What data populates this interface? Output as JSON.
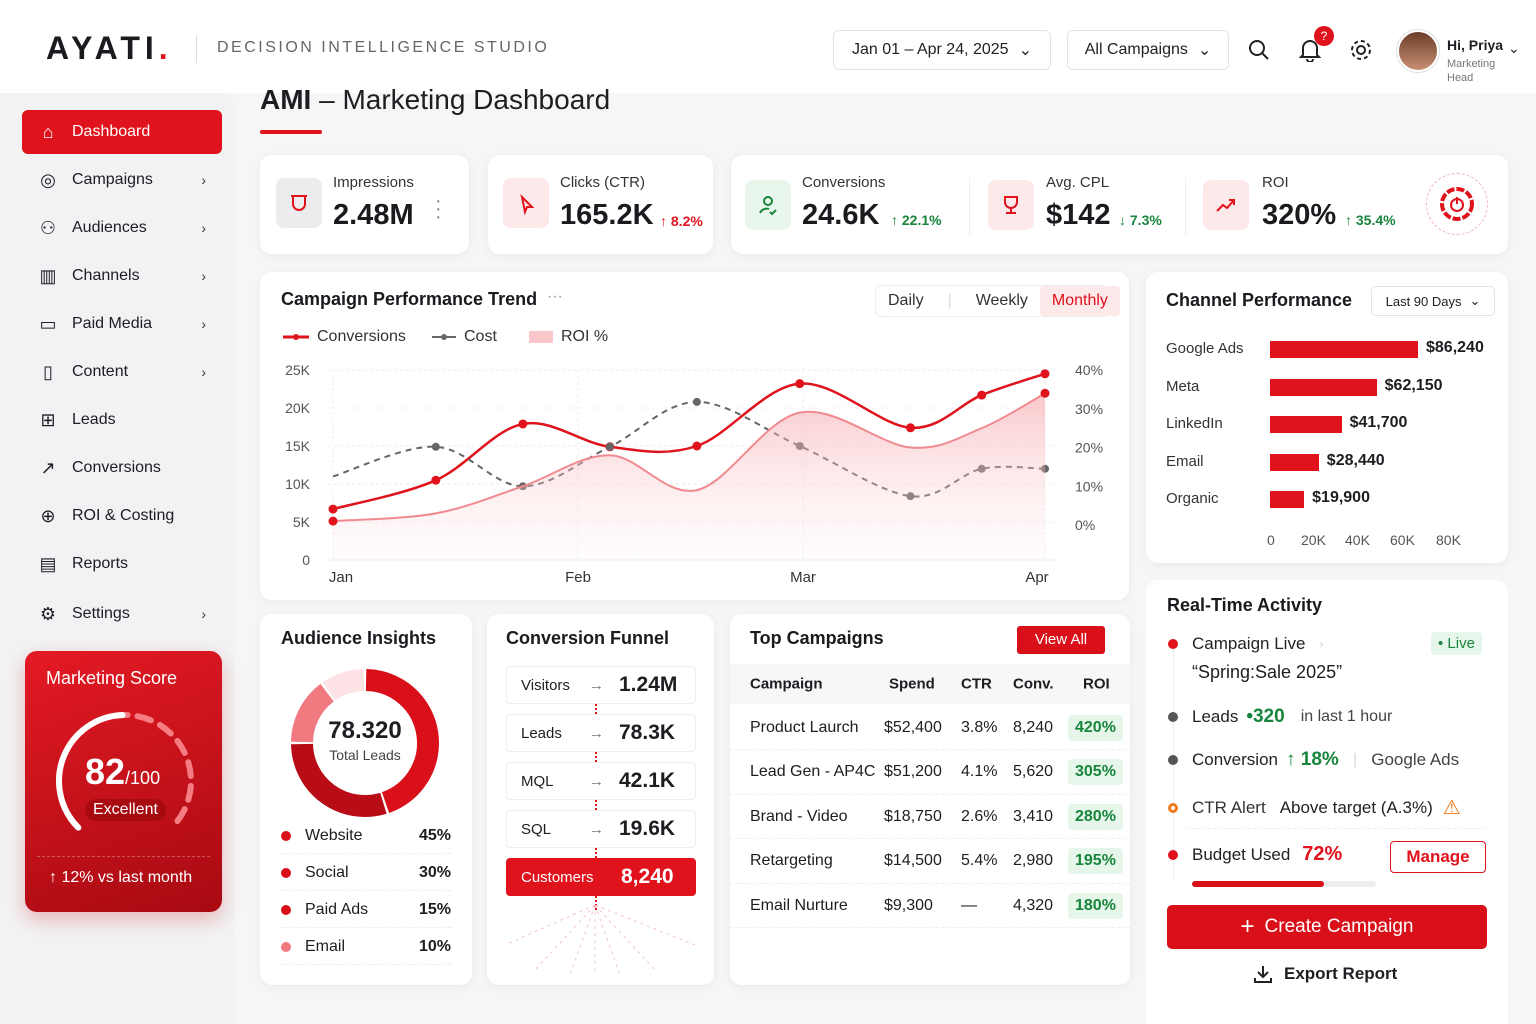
{
  "brand": {
    "logo": "AYATI",
    "tagline": "DECISION INTELLIGENCE STUDIO"
  },
  "header": {
    "date_range": "Jan 01 – Apr 24, 2025",
    "campaign_filter": "All Campaigns",
    "notification_count": "?",
    "user_greeting": "Hi, Priya",
    "user_role": "Marketing Head"
  },
  "page": {
    "title_bold": "AMI",
    "title_rest": "– Marketing Dashboard"
  },
  "sidebar": {
    "items": [
      {
        "label": "Dashboard",
        "icon": "home-icon",
        "active": true
      },
      {
        "label": "Campaigns",
        "icon": "globe-icon"
      },
      {
        "label": "Audiences",
        "icon": "users-icon"
      },
      {
        "label": "Channels",
        "icon": "bar-chart-icon"
      },
      {
        "label": "Paid Media",
        "icon": "card-icon"
      },
      {
        "label": "Content",
        "icon": "document-icon"
      },
      {
        "label": "Leads",
        "icon": "leads-icon"
      },
      {
        "label": "Conversions",
        "icon": "growth-icon"
      },
      {
        "label": "ROI & Costing",
        "icon": "plus-circle-icon"
      },
      {
        "label": "Reports",
        "icon": "report-icon"
      },
      {
        "label": "Settings",
        "icon": "gear-icon"
      }
    ]
  },
  "score": {
    "title": "Marketing Score",
    "value": "82",
    "max": "/100",
    "rating": "Excellent",
    "delta": "↑ 12% vs last month",
    "fraction": 0.82
  },
  "kpis": [
    {
      "label": "Impressions",
      "value": "2.48M",
      "delta": ""
    },
    {
      "label": "Clicks (CTR)",
      "value": "165.2K",
      "delta": "↑ 8.2%"
    },
    {
      "label": "Conversions",
      "value": "24.6K",
      "delta": "↑ 22.1%"
    },
    {
      "label": "Avg. CPL",
      "value": "$142",
      "delta": "↓ 7.3%"
    },
    {
      "label": "ROI",
      "value": "320%",
      "delta": "↑ 35.4%"
    }
  ],
  "trend": {
    "title": "Campaign Performance Trend",
    "periods": [
      "Daily",
      "Weekly",
      "Monthly"
    ],
    "active_period": "Monthly",
    "legend": [
      "Conversions",
      "Cost",
      "ROI %"
    ]
  },
  "chart_data": {
    "type": "line",
    "title": "Campaign Performance Trend",
    "x": [
      "2025-01-01",
      "2025-01-14",
      "2025-01-25",
      "2025-02-05",
      "2025-02-16",
      "2025-03-01",
      "2025-03-15",
      "2025-03-24",
      "2025-04-01"
    ],
    "x_ticks": [
      "Jan",
      "Feb",
      "Mar",
      "Apr"
    ],
    "y_ticks": [
      "0",
      "5K",
      "10K",
      "15K",
      "20K",
      "25K"
    ],
    "y2_ticks": [
      "0%",
      "10%",
      "20%",
      "30%",
      "40%"
    ],
    "ylim": [
      0,
      25000
    ],
    "y2lim": [
      0,
      40
    ],
    "series": [
      {
        "name": "Conversions",
        "axis": "left",
        "color": "#e0121c",
        "values": [
          6700,
          10500,
          17900,
          14900,
          15000,
          23200,
          17400,
          21700,
          24500
        ]
      },
      {
        "name": "Cost",
        "axis": "left",
        "color": "#666666",
        "dashed": true,
        "values": [
          11000,
          14900,
          9700,
          14900,
          20800,
          15000,
          8400,
          12000,
          12000
        ]
      },
      {
        "name": "ROI %",
        "axis": "right",
        "color": "#f08a90",
        "area": true,
        "values": [
          1,
          3,
          10,
          18,
          9,
          29,
          20,
          25,
          34
        ]
      }
    ],
    "grid": true,
    "legend": "top-left"
  },
  "channels": {
    "title": "Channel Performance",
    "range": "Last 90 Days",
    "items": [
      {
        "name": "Google Ads",
        "value": 86240,
        "label": "$86,240"
      },
      {
        "name": "Meta",
        "value": 62150,
        "label": "$62,150"
      },
      {
        "name": "LinkedIn",
        "value": 41700,
        "label": "$41,700"
      },
      {
        "name": "Email",
        "value": 28440,
        "label": "$28,440"
      },
      {
        "name": "Organic",
        "value": 19900,
        "label": "$19,900"
      }
    ],
    "ticks": [
      "0",
      "20K",
      "40K",
      "60K",
      "80K"
    ]
  },
  "audience": {
    "title": "Audience Insights",
    "total": "78.320",
    "total_label": "Total Leads",
    "segments": [
      {
        "name": "Website",
        "pct": 45,
        "label": "45%",
        "color": "#d9101a"
      },
      {
        "name": "Social",
        "pct": 30,
        "label": "30%",
        "color": "#b80d16"
      },
      {
        "name": "Paid Ads",
        "pct": 15,
        "label": "15%",
        "color": "#f07a80"
      },
      {
        "name": "Email",
        "pct": 10,
        "label": "10%",
        "color": "#fde3e5"
      }
    ]
  },
  "funnel": {
    "title": "Conversion Funnel",
    "stages": [
      {
        "name": "Visitors",
        "value": "1.24M"
      },
      {
        "name": "Leads",
        "value": "78.3K"
      },
      {
        "name": "MQL",
        "value": "42.1K"
      },
      {
        "name": "SQL",
        "value": "19.6K"
      },
      {
        "name": "Customers",
        "value": "8,240"
      }
    ]
  },
  "campaigns": {
    "title": "Top Campaigns",
    "view_all": "View All",
    "headers": [
      "Campaign",
      "Spend",
      "CTR",
      "Conv.",
      "ROI"
    ],
    "rows": [
      [
        "Product Laurch",
        "$52,400",
        "3.8%",
        "8,240",
        "420%"
      ],
      [
        "Lead Gen - AP4C",
        "$51,200",
        "4.1%",
        "5,620",
        "305%"
      ],
      [
        "Brand - Video",
        "$18,750",
        "2.6%",
        "3,410",
        "280%"
      ],
      [
        "Retargeting",
        "$14,500",
        "5.4%",
        "2,980",
        "195%"
      ],
      [
        "Email Nurture",
        "$9,300",
        "—",
        "4,320",
        "180%"
      ]
    ]
  },
  "activity": {
    "title": "Real-Time Activity",
    "live_title": "Campaign Live",
    "live_badge": "• Live",
    "live_name": "“Spring:Sale 2025”",
    "leads_label": "Leads",
    "leads_value": "•320",
    "leads_suffix": "in last 1 hour",
    "conv_label": "Conversion",
    "conv_value": "↑ 18%",
    "conv_channel": "Google Ads",
    "ctr_label": "CTR Alert",
    "ctr_text": "Above target (A.3%)",
    "budget_label": "Budget Used",
    "budget_value": "72%",
    "budget_fraction": 0.72,
    "manage": "Manage",
    "create": "Create Campaign",
    "export": "Export Report"
  }
}
